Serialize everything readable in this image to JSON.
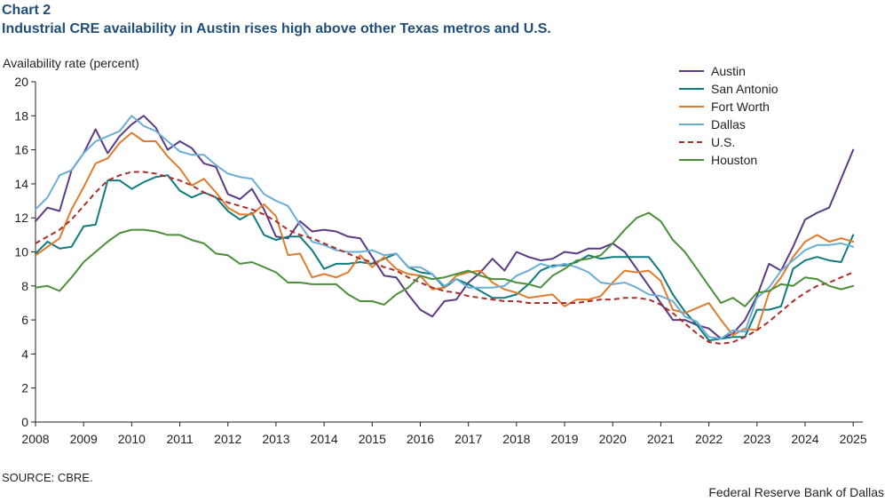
{
  "header": {
    "chart_label": "Chart 2",
    "title": "Industrial CRE availability in Austin rises high above other Texas metros and U.S."
  },
  "footer": {
    "source": "SOURCE: CBRE.",
    "credit": "Federal Reserve Bank of Dallas"
  },
  "colors": {
    "Austin": "#5b3a86",
    "San Antonio": "#0f7b7d",
    "Fort Worth": "#e07b2e",
    "Dallas": "#6aaed6",
    "U.S.": "#a82f2a",
    "Houston": "#4b8f3a"
  },
  "chart_data": {
    "type": "line",
    "title": "Industrial CRE availability in Austin rises high above other Texas metros and U.S.",
    "ylabel": "Availability rate (percent)",
    "xlabel": "",
    "xlim": [
      2008,
      2025.2
    ],
    "ylim": [
      0,
      20
    ],
    "yticks": [
      0,
      2,
      4,
      6,
      8,
      10,
      12,
      14,
      16,
      18,
      20
    ],
    "xticks": [
      2008,
      2009,
      2010,
      2011,
      2012,
      2013,
      2014,
      2015,
      2016,
      2017,
      2018,
      2019,
      2020,
      2021,
      2022,
      2023,
      2024,
      2025
    ],
    "grid": false,
    "legend": "top-right",
    "x_start": 2008,
    "x_step": 0.25,
    "series": [
      {
        "name": "Austin",
        "style": "solid",
        "values": [
          11.8,
          12.6,
          12.4,
          14.8,
          15.8,
          17.2,
          15.8,
          16.8,
          17.5,
          18.0,
          17.3,
          16.0,
          16.5,
          16.1,
          15.2,
          15.0,
          13.4,
          13.1,
          13.7,
          12.5,
          10.9,
          10.8,
          11.8,
          11.2,
          11.3,
          11.2,
          10.9,
          10.8,
          9.7,
          8.6,
          8.5,
          7.5,
          6.6,
          6.2,
          7.1,
          7.2,
          8.2,
          8.8,
          9.6,
          8.9,
          10.0,
          9.7,
          9.5,
          9.6,
          10.0,
          9.9,
          10.2,
          10.2,
          10.5,
          10.0,
          9.0,
          8.0,
          7.0,
          6.0,
          6.0,
          5.7,
          5.5,
          4.9,
          5.2,
          6.0,
          7.4,
          9.3,
          8.9,
          10.3,
          11.9,
          12.3,
          12.6,
          14.3,
          16.0
        ]
      },
      {
        "name": "San Antonio",
        "style": "solid",
        "values": [
          9.9,
          10.6,
          10.2,
          10.3,
          11.5,
          11.6,
          14.2,
          14.2,
          13.7,
          14.1,
          14.4,
          14.5,
          13.6,
          13.2,
          13.5,
          13.2,
          12.4,
          11.9,
          12.3,
          11.0,
          10.7,
          10.9,
          10.9,
          10.1,
          9.0,
          9.3,
          9.3,
          9.4,
          9.3,
          9.6,
          9.9,
          9.1,
          8.8,
          8.7,
          7.9,
          8.4,
          8.1,
          7.7,
          7.3,
          7.3,
          7.5,
          8.1,
          8.9,
          9.2,
          9.2,
          9.4,
          9.8,
          9.6,
          9.7,
          9.7,
          9.7,
          9.7,
          8.8,
          7.5,
          6.5,
          5.7,
          4.8,
          4.9,
          5.0,
          5.0,
          6.6,
          6.6,
          6.8,
          9.0,
          9.5,
          9.7,
          9.5,
          9.4,
          11.0
        ]
      },
      {
        "name": "Fort Worth",
        "style": "solid",
        "values": [
          9.8,
          10.3,
          10.8,
          12.5,
          13.8,
          15.2,
          15.5,
          16.4,
          17.0,
          16.5,
          16.5,
          15.6,
          14.9,
          13.9,
          14.3,
          13.5,
          12.6,
          12.2,
          12.2,
          12.8,
          12.1,
          9.8,
          9.9,
          8.5,
          8.7,
          8.5,
          8.8,
          9.8,
          9.1,
          9.7,
          9.0,
          8.7,
          8.6,
          7.8,
          7.9,
          8.6,
          8.8,
          8.9,
          8.2,
          7.8,
          7.6,
          7.3,
          7.4,
          7.5,
          6.8,
          7.2,
          7.2,
          7.4,
          8.2,
          8.9,
          8.8,
          8.9,
          8.3,
          6.6,
          6.4,
          6.7,
          7.0,
          6.0,
          5.1,
          5.5,
          5.4,
          7.6,
          8.5,
          9.7,
          10.6,
          11.0,
          10.6,
          10.8,
          10.6
        ]
      },
      {
        "name": "Dallas",
        "style": "solid",
        "values": [
          12.5,
          13.2,
          14.5,
          14.8,
          15.8,
          16.5,
          16.8,
          17.1,
          18.0,
          17.4,
          17.1,
          16.5,
          15.9,
          15.7,
          15.7,
          15.1,
          14.6,
          14.4,
          14.3,
          13.4,
          13.0,
          12.7,
          11.6,
          10.6,
          10.4,
          10.1,
          10.0,
          10.0,
          10.1,
          9.8,
          9.9,
          9.1,
          9.1,
          8.7,
          8.0,
          8.4,
          7.9,
          7.9,
          7.9,
          8.0,
          8.6,
          8.9,
          9.3,
          9.1,
          9.3,
          9.1,
          8.8,
          8.2,
          8.1,
          8.2,
          7.9,
          7.5,
          7.4,
          7.1,
          6.2,
          5.9,
          5.0,
          4.9,
          5.4,
          5.3,
          7.3,
          7.9,
          8.9,
          9.5,
          10.1,
          10.4,
          10.4,
          10.5,
          10.3
        ]
      },
      {
        "name": "U.S.",
        "style": "dashed",
        "values": [
          10.5,
          10.9,
          11.3,
          11.9,
          12.7,
          13.5,
          14.2,
          14.5,
          14.7,
          14.7,
          14.6,
          14.4,
          14.2,
          13.9,
          13.5,
          13.2,
          12.9,
          12.7,
          12.5,
          12.2,
          11.8,
          11.3,
          11.0,
          10.8,
          10.5,
          10.2,
          9.9,
          9.6,
          9.4,
          9.1,
          8.9,
          8.5,
          8.2,
          7.9,
          7.7,
          7.6,
          7.4,
          7.3,
          7.2,
          7.1,
          7.1,
          7.0,
          7.0,
          7.0,
          7.0,
          7.0,
          7.1,
          7.2,
          7.2,
          7.3,
          7.3,
          7.2,
          6.9,
          6.4,
          5.8,
          5.2,
          4.7,
          4.6,
          4.7,
          5.0,
          5.4,
          5.9,
          6.5,
          7.1,
          7.6,
          8.0,
          8.2,
          8.5,
          8.8
        ]
      },
      {
        "name": "Houston",
        "style": "solid",
        "values": [
          7.9,
          8.0,
          7.7,
          8.5,
          9.4,
          10.0,
          10.6,
          11.1,
          11.3,
          11.3,
          11.2,
          11.0,
          11.0,
          10.7,
          10.5,
          9.9,
          9.8,
          9.3,
          9.4,
          9.1,
          8.8,
          8.2,
          8.2,
          8.1,
          8.1,
          8.1,
          7.5,
          7.1,
          7.1,
          6.9,
          7.5,
          7.9,
          8.6,
          8.4,
          8.5,
          8.7,
          8.9,
          8.6,
          8.4,
          8.4,
          8.2,
          8.1,
          7.9,
          8.6,
          9.0,
          9.5,
          9.6,
          9.8,
          10.5,
          11.3,
          12.0,
          12.3,
          11.8,
          10.7,
          10.0,
          9.0,
          8.0,
          7.0,
          7.3,
          6.8,
          7.6,
          7.7,
          8.1,
          8.0,
          8.5,
          8.4,
          8.0,
          7.8,
          8.0
        ]
      }
    ]
  }
}
